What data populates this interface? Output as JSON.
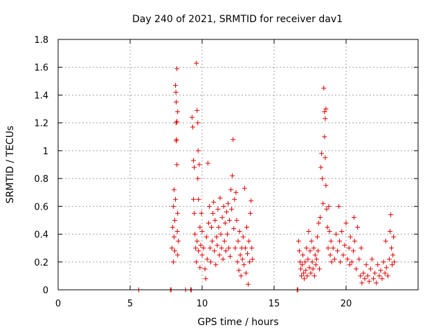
{
  "chart_data": {
    "type": "scatter",
    "title": "Day 240 of 2021, SRMTID for receiver dav1",
    "xlabel": "GPS time / hours",
    "ylabel": "SRMTID / TECUs",
    "xlim": [
      0,
      25
    ],
    "ylim": [
      0,
      1.8
    ],
    "xticks": [
      0,
      5,
      10,
      15,
      20
    ],
    "yticks": [
      0,
      0.2,
      0.4,
      0.6,
      0.8,
      1,
      1.2,
      1.4,
      1.6,
      1.8
    ],
    "ytick_labels": [
      "0",
      "0.2",
      "0.4",
      "0.6",
      "0.8",
      "1",
      "1.2",
      "1.4",
      "1.6",
      "1.8"
    ],
    "grid": true,
    "marker": "+",
    "color": "#e00000",
    "series": [
      {
        "name": "SRMTID",
        "points": [
          [
            5.6,
            0.0
          ],
          [
            7.8,
            0.0
          ],
          [
            7.85,
            0.0
          ],
          [
            8.85,
            0.0
          ],
          [
            9.2,
            0.0
          ],
          [
            9.25,
            0.0
          ],
          [
            16.6,
            0.0
          ],
          [
            16.65,
            0.0
          ],
          [
            7.9,
            0.3
          ],
          [
            7.95,
            0.45
          ],
          [
            8.0,
            0.6
          ],
          [
            8.0,
            0.2
          ],
          [
            8.05,
            0.72
          ],
          [
            8.05,
            0.38
          ],
          [
            8.1,
            0.5
          ],
          [
            8.1,
            0.28
          ],
          [
            8.15,
            0.65
          ],
          [
            8.15,
            1.47
          ],
          [
            8.18,
            1.42
          ],
          [
            8.2,
            1.35
          ],
          [
            8.2,
            1.2
          ],
          [
            8.22,
            1.08
          ],
          [
            8.25,
            1.59
          ],
          [
            8.25,
            0.9
          ],
          [
            8.28,
            0.42
          ],
          [
            8.3,
            1.28
          ],
          [
            8.3,
            0.55
          ],
          [
            8.3,
            0.25
          ],
          [
            8.35,
            0.35
          ],
          [
            8.25,
            1.21
          ],
          [
            8.2,
            1.07
          ],
          [
            9.3,
            1.24
          ],
          [
            9.35,
            1.17
          ],
          [
            9.4,
            0.93
          ],
          [
            9.45,
            0.88
          ],
          [
            9.4,
            0.65
          ],
          [
            9.45,
            0.55
          ],
          [
            9.5,
            0.4
          ],
          [
            9.55,
            0.3
          ],
          [
            9.6,
            1.63
          ],
          [
            9.6,
            0.2
          ],
          [
            9.65,
            1.29
          ],
          [
            9.65,
            0.35
          ],
          [
            9.7,
            1.2
          ],
          [
            9.7,
            0.8
          ],
          [
            9.72,
            1.0
          ],
          [
            9.75,
            0.65
          ],
          [
            9.75,
            0.28
          ],
          [
            9.8,
            0.9
          ],
          [
            9.85,
            0.45
          ],
          [
            9.85,
            0.16
          ],
          [
            9.9,
            0.32
          ],
          [
            9.95,
            0.55
          ],
          [
            10.0,
            0.25
          ],
          [
            10.0,
            0.42
          ],
          [
            10.1,
            0.3
          ],
          [
            10.2,
            0.15
          ],
          [
            10.25,
            0.08
          ],
          [
            10.3,
            0.38
          ],
          [
            10.35,
            0.22
          ],
          [
            10.4,
            0.91
          ],
          [
            10.45,
            0.48
          ],
          [
            10.5,
            0.6
          ],
          [
            10.55,
            0.3
          ],
          [
            10.6,
            0.2
          ],
          [
            10.65,
            0.45
          ],
          [
            10.7,
            0.35
          ],
          [
            10.75,
            0.55
          ],
          [
            10.8,
            0.63
          ],
          [
            10.85,
            0.28
          ],
          [
            10.9,
            0.5
          ],
          [
            10.95,
            0.18
          ],
          [
            11.0,
            0.38
          ],
          [
            11.05,
            0.32
          ],
          [
            11.1,
            0.58
          ],
          [
            11.15,
            0.45
          ],
          [
            11.2,
            0.25
          ],
          [
            11.25,
            0.66
          ],
          [
            11.3,
            0.4
          ],
          [
            11.35,
            0.3
          ],
          [
            11.4,
            0.52
          ],
          [
            11.45,
            0.22
          ],
          [
            11.5,
            0.6
          ],
          [
            11.55,
            0.35
          ],
          [
            11.6,
            0.48
          ],
          [
            11.65,
            0.28
          ],
          [
            11.7,
            0.56
          ],
          [
            11.75,
            0.4
          ],
          [
            11.8,
            0.62
          ],
          [
            11.85,
            0.3
          ],
          [
            11.9,
            0.5
          ],
          [
            11.95,
            0.24
          ],
          [
            12.0,
            0.72
          ],
          [
            12.05,
            0.58
          ],
          [
            12.1,
            0.82
          ],
          [
            12.15,
            1.08
          ],
          [
            12.2,
            0.44
          ],
          [
            12.25,
            0.65
          ],
          [
            12.3,
            0.3
          ],
          [
            12.35,
            0.7
          ],
          [
            12.4,
            0.5
          ],
          [
            12.45,
            0.2
          ],
          [
            12.5,
            0.35
          ],
          [
            12.55,
            0.14
          ],
          [
            12.6,
            0.42
          ],
          [
            12.65,
            0.25
          ],
          [
            12.7,
            0.1
          ],
          [
            12.75,
            0.3
          ],
          [
            12.8,
            0.22
          ],
          [
            12.85,
            0.38
          ],
          [
            12.9,
            0.18
          ],
          [
            12.95,
            0.73
          ],
          [
            13.0,
            0.3
          ],
          [
            13.05,
            0.12
          ],
          [
            13.1,
            0.45
          ],
          [
            13.15,
            0.26
          ],
          [
            13.2,
            0.04
          ],
          [
            13.25,
            0.35
          ],
          [
            13.3,
            0.2
          ],
          [
            13.35,
            0.55
          ],
          [
            13.4,
            0.64
          ],
          [
            13.45,
            0.3
          ],
          [
            13.5,
            0.22
          ],
          [
            16.7,
            0.35
          ],
          [
            16.75,
            0.28
          ],
          [
            16.8,
            0.2
          ],
          [
            16.85,
            0.15
          ],
          [
            16.9,
            0.1
          ],
          [
            16.95,
            0.18
          ],
          [
            17.0,
            0.25
          ],
          [
            17.05,
            0.12
          ],
          [
            17.1,
            0.08
          ],
          [
            17.15,
            0.2
          ],
          [
            17.2,
            0.14
          ],
          [
            17.25,
            0.3
          ],
          [
            17.3,
            0.1
          ],
          [
            17.35,
            0.22
          ],
          [
            17.4,
            0.42
          ],
          [
            17.45,
            0.16
          ],
          [
            17.5,
            0.28
          ],
          [
            17.55,
            0.12
          ],
          [
            17.6,
            0.35
          ],
          [
            17.65,
            0.2
          ],
          [
            17.7,
            0.15
          ],
          [
            17.75,
            0.3
          ],
          [
            17.8,
            0.1
          ],
          [
            17.85,
            0.25
          ],
          [
            17.9,
            0.18
          ],
          [
            17.95,
            0.22
          ],
          [
            18.0,
            0.38
          ],
          [
            18.05,
            0.28
          ],
          [
            18.1,
            0.48
          ],
          [
            18.15,
            0.15
          ],
          [
            18.2,
            0.52
          ],
          [
            18.25,
            0.88
          ],
          [
            18.3,
            0.98
          ],
          [
            18.35,
            0.8
          ],
          [
            18.4,
            0.62
          ],
          [
            18.45,
            1.45
          ],
          [
            18.5,
            1.28
          ],
          [
            18.5,
            1.1
          ],
          [
            18.55,
            1.23
          ],
          [
            18.55,
            0.95
          ],
          [
            18.6,
            1.3
          ],
          [
            18.6,
            0.75
          ],
          [
            18.65,
            0.58
          ],
          [
            18.7,
            0.45
          ],
          [
            18.75,
            0.3
          ],
          [
            18.8,
            0.6
          ],
          [
            18.85,
            0.42
          ],
          [
            18.9,
            0.25
          ],
          [
            18.95,
            0.35
          ],
          [
            19.0,
            0.2
          ],
          [
            19.1,
            0.3
          ],
          [
            19.2,
            0.22
          ],
          [
            19.3,
            0.4
          ],
          [
            19.4,
            0.28
          ],
          [
            19.5,
            0.6
          ],
          [
            19.55,
            0.35
          ],
          [
            19.6,
            0.2
          ],
          [
            19.7,
            0.42
          ],
          [
            19.8,
            0.25
          ],
          [
            19.9,
            0.32
          ],
          [
            20.0,
            0.48
          ],
          [
            20.1,
            0.22
          ],
          [
            20.2,
            0.3
          ],
          [
            20.25,
            0.18
          ],
          [
            20.3,
            0.38
          ],
          [
            20.4,
            0.2
          ],
          [
            20.5,
            0.28
          ],
          [
            20.55,
            0.52
          ],
          [
            20.6,
            0.35
          ],
          [
            20.7,
            0.15
          ],
          [
            20.8,
            0.45
          ],
          [
            20.9,
            0.22
          ],
          [
            21.0,
            0.1
          ],
          [
            21.05,
            0.3
          ],
          [
            21.1,
            0.05
          ],
          [
            21.2,
            0.12
          ],
          [
            21.3,
            0.08
          ],
          [
            21.4,
            0.18
          ],
          [
            21.5,
            0.1
          ],
          [
            21.6,
            0.06
          ],
          [
            21.7,
            0.15
          ],
          [
            21.8,
            0.22
          ],
          [
            21.9,
            0.08
          ],
          [
            22.0,
            0.12
          ],
          [
            22.1,
            0.05
          ],
          [
            22.2,
            0.18
          ],
          [
            22.3,
            0.1
          ],
          [
            22.4,
            0.14
          ],
          [
            22.5,
            0.08
          ],
          [
            22.6,
            0.2
          ],
          [
            22.7,
            0.12
          ],
          [
            22.75,
            0.35
          ],
          [
            22.8,
            0.16
          ],
          [
            22.9,
            0.1
          ],
          [
            23.0,
            0.22
          ],
          [
            23.05,
            0.42
          ],
          [
            23.1,
            0.54
          ],
          [
            23.15,
            0.3
          ],
          [
            23.2,
            0.18
          ],
          [
            23.25,
            0.25
          ],
          [
            23.3,
            0.38
          ],
          [
            23.35,
            0.2
          ]
        ]
      }
    ]
  }
}
